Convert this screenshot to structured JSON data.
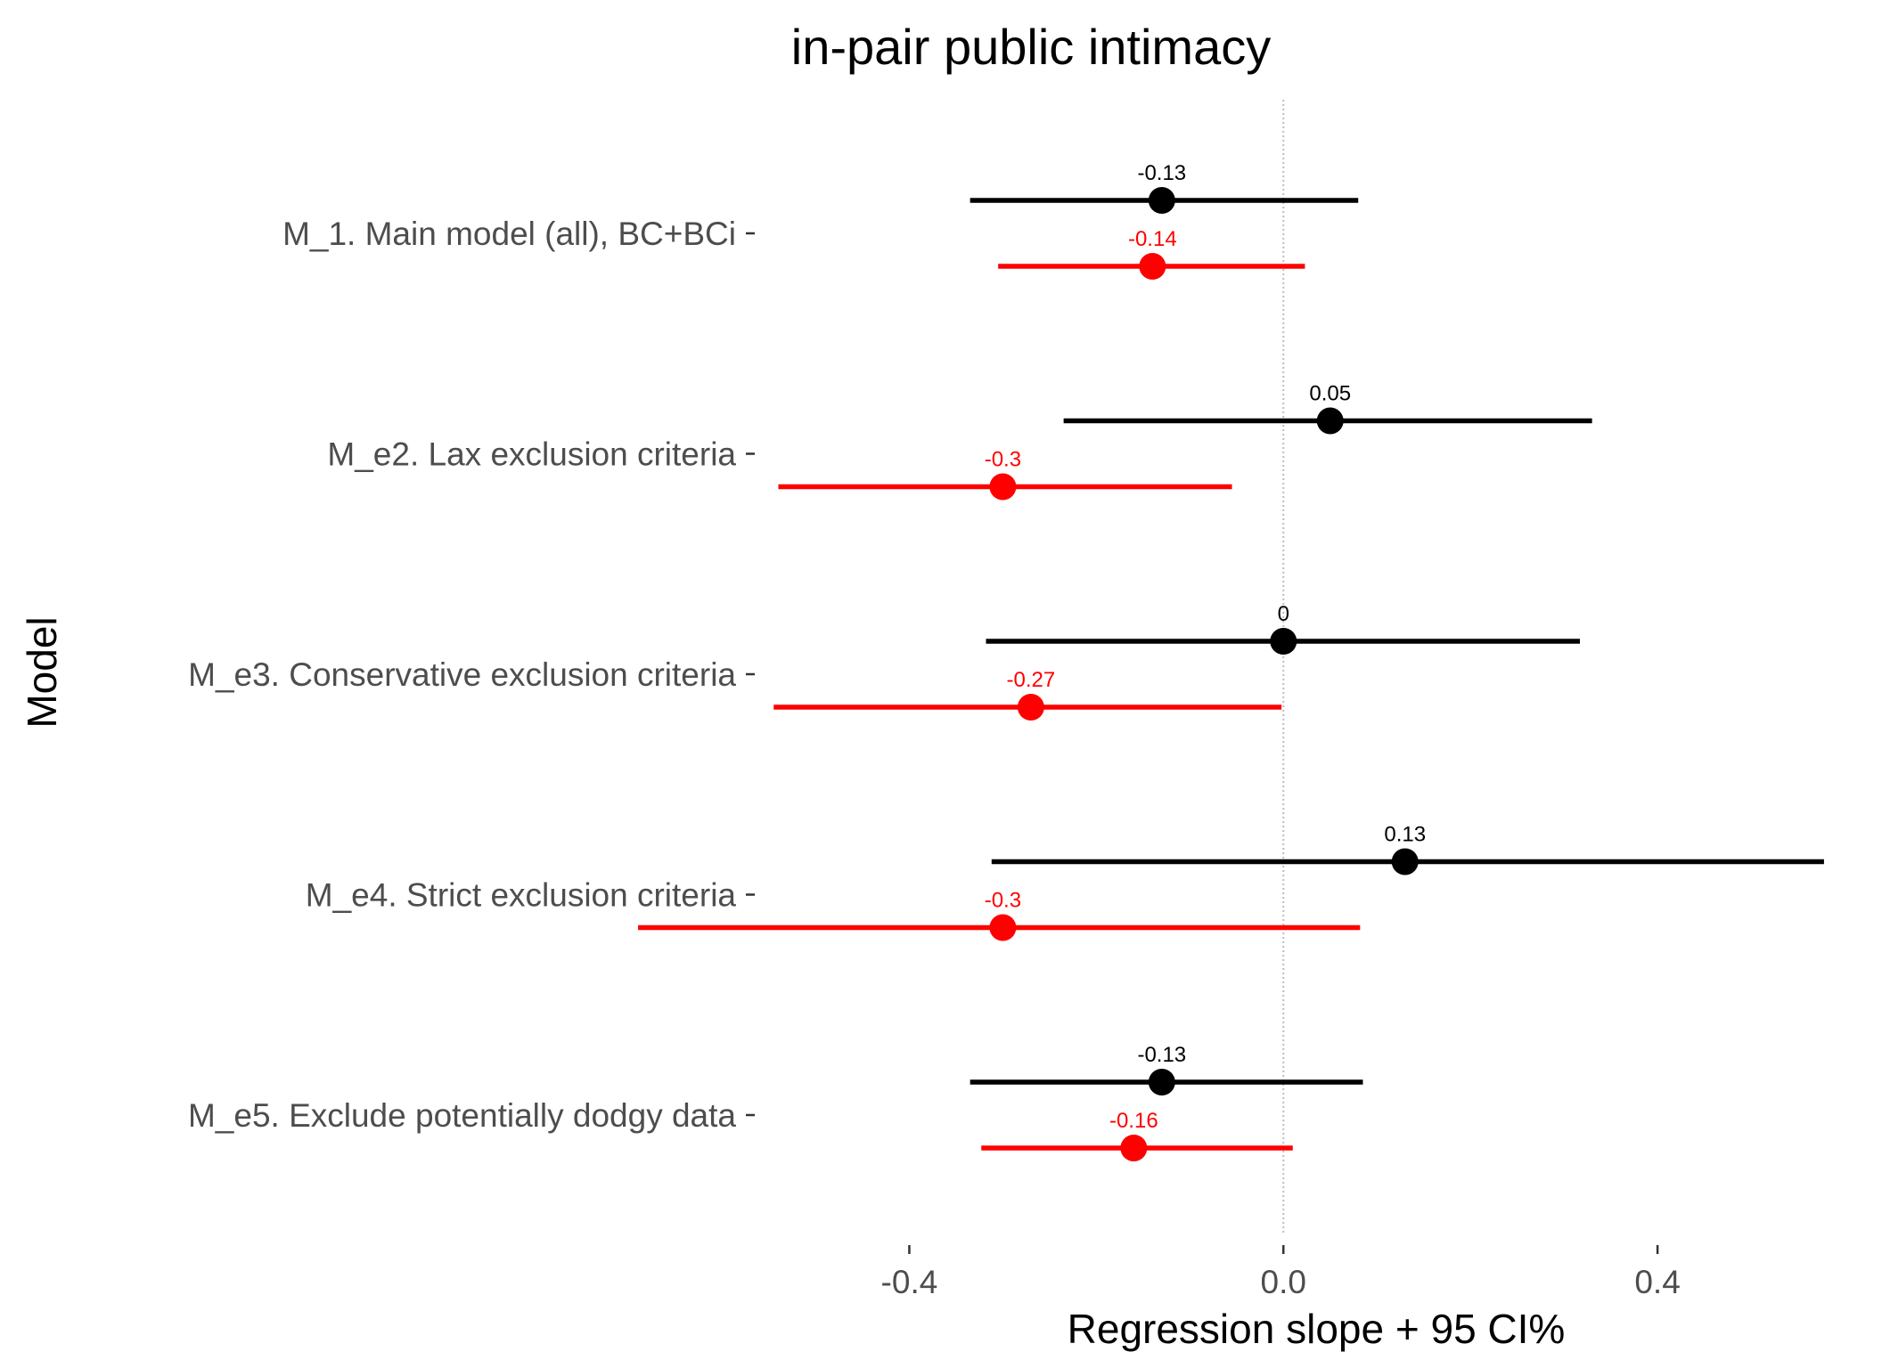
{
  "chart_data": {
    "type": "errorbar",
    "title": "in-pair public intimacy",
    "xlabel": "Regression slope + 95 CI%",
    "ylabel": "Model",
    "xlim": [
      -0.55,
      0.6
    ],
    "xticks": [
      -0.4,
      0.0,
      0.4
    ],
    "xtick_labels": [
      "-0.4",
      "0.0",
      "0.4"
    ],
    "reference_line_x": 0,
    "grid": false,
    "legend": "none",
    "categories": [
      "M_1. Main model (all), BC+BCi",
      "M_e2. Lax exclusion criteria",
      "M_e3. Conservative exclusion criteria",
      "M_e4. Strict exclusion criteria",
      "M_e5. Exclude potentially dodgy data"
    ],
    "series": [
      {
        "color": "#000000",
        "estimates": [
          -0.13,
          0.05,
          0.0,
          0.13,
          -0.13
        ],
        "labels": [
          "-0.13",
          "0.05",
          "0",
          "0.13",
          "-0.13"
        ],
        "ci_low": [
          -0.335,
          -0.235,
          -0.318,
          -0.312,
          -0.335
        ],
        "ci_high": [
          0.08,
          0.33,
          0.317,
          0.578,
          0.085
        ]
      },
      {
        "color": "#ff0000",
        "estimates": [
          -0.14,
          -0.3,
          -0.27,
          -0.3,
          -0.16
        ],
        "labels": [
          "-0.14",
          "-0.3",
          "-0.27",
          "-0.3",
          "-0.16"
        ],
        "ci_low": [
          -0.305,
          -0.54,
          -0.545,
          -0.69,
          -0.323
        ],
        "ci_high": [
          0.023,
          -0.055,
          -0.002,
          0.082,
          0.01
        ]
      }
    ]
  }
}
